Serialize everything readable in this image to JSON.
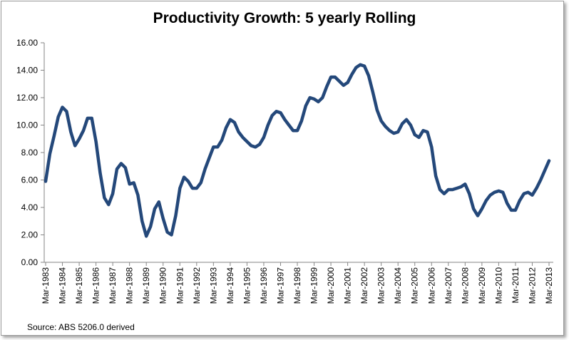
{
  "chart_data": {
    "type": "line",
    "title": "Productivity Growth: 5 yearly Rolling",
    "source": "Source: ABS 5206.0 derived",
    "xlabel": "",
    "ylabel": "",
    "ylim": [
      0,
      16
    ],
    "y_ticks": [
      "0.00",
      "2.00",
      "4.00",
      "6.00",
      "8.00",
      "10.00",
      "12.00",
      "14.00",
      "16.00"
    ],
    "x_tick_labels": [
      "Mar-1983",
      "Mar-1984",
      "Mar-1985",
      "Mar-1986",
      "Mar-1987",
      "Mar-1988",
      "Mar-1989",
      "Mar-1990",
      "Mar-1991",
      "Mar-1992",
      "Mar-1993",
      "Mar-1994",
      "Mar-1995",
      "Mar-1996",
      "Mar-1997",
      "Mar-1998",
      "Mar-1999",
      "Mar-2000",
      "Mar-2001",
      "Mar-2002",
      "Mar-2003",
      "Mar-2004",
      "Mar-2005",
      "Mar-2006",
      "Mar-2007",
      "Mar-2008",
      "Mar-2009",
      "Mar-2010",
      "Mar-2011",
      "Mar-2012",
      "Mar-2013"
    ],
    "grid": false,
    "legend": "none",
    "series": [
      {
        "name": "Productivity Growth",
        "color": "#24487a",
        "values": [
          5.9,
          7.9,
          9.2,
          10.6,
          11.3,
          11.0,
          9.5,
          8.5,
          9.0,
          9.6,
          10.5,
          10.5,
          8.8,
          6.5,
          4.7,
          4.2,
          5.0,
          6.8,
          7.2,
          6.9,
          5.7,
          5.8,
          4.9,
          3.0,
          1.9,
          2.6,
          3.9,
          4.4,
          3.2,
          2.2,
          2.0,
          3.4,
          5.4,
          6.2,
          5.9,
          5.4,
          5.4,
          5.8,
          6.8,
          7.6,
          8.4,
          8.4,
          8.9,
          9.8,
          10.4,
          10.2,
          9.5,
          9.1,
          8.8,
          8.5,
          8.4,
          8.6,
          9.1,
          10.0,
          10.7,
          11.0,
          10.9,
          10.4,
          10.0,
          9.6,
          9.6,
          10.3,
          11.4,
          12.0,
          11.9,
          11.7,
          12.0,
          12.8,
          13.5,
          13.5,
          13.2,
          12.9,
          13.1,
          13.7,
          14.2,
          14.4,
          14.3,
          13.6,
          12.4,
          11.1,
          10.3,
          9.9,
          9.6,
          9.4,
          9.5,
          10.1,
          10.4,
          10.0,
          9.3,
          9.1,
          9.6,
          9.5,
          8.4,
          6.3,
          5.3,
          5.0,
          5.3,
          5.3,
          5.4,
          5.5,
          5.7,
          5.0,
          3.9,
          3.4,
          3.9,
          4.5,
          4.9,
          5.1,
          5.2,
          5.1,
          4.3,
          3.8,
          3.8,
          4.5,
          5.0,
          5.1,
          4.9,
          5.4,
          6.0,
          6.7,
          7.4
        ]
      }
    ]
  }
}
